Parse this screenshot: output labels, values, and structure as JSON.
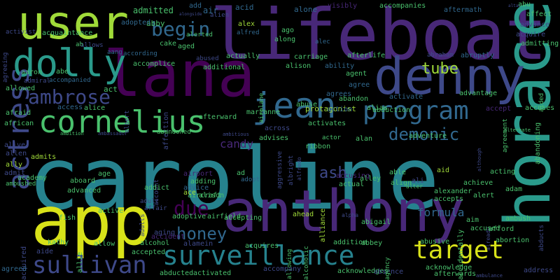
{
  "palette": {
    "yellow": "#d8e219",
    "lime": "#a0da39",
    "green": "#4ac16d",
    "teal": "#2a9a8b",
    "cyan": "#26828e",
    "blue": "#31688e",
    "indigo": "#3e4989",
    "purple": "#482878",
    "violet": "#440154"
  },
  "words": [
    {
      "text": "caroline",
      "color": "cyan"
    },
    {
      "text": "lifeboat",
      "color": "purple"
    },
    {
      "text": "lana",
      "color": "violet"
    },
    {
      "text": "anthony",
      "color": "purple"
    },
    {
      "text": "app",
      "color": "yellow"
    },
    {
      "text": "horace",
      "color": "teal"
    },
    {
      "text": "denny",
      "color": "indigo"
    },
    {
      "text": "user",
      "color": "lime"
    },
    {
      "text": "dolly",
      "color": "teal"
    },
    {
      "text": "jean",
      "color": "blue"
    },
    {
      "text": "cornelius",
      "color": "green"
    },
    {
      "text": "program",
      "color": "blue"
    },
    {
      "text": "surveillance",
      "color": "cyan"
    },
    {
      "text": "actress",
      "color": "indigo"
    },
    {
      "text": "sullivan",
      "color": "indigo"
    },
    {
      "text": "ambrose",
      "color": "indigo"
    },
    {
      "text": "target",
      "color": "yellow"
    },
    {
      "text": "begin",
      "color": "blue"
    },
    {
      "text": "due",
      "color": "violet"
    },
    {
      "text": "demonic",
      "color": "blue"
    },
    {
      "text": "honey",
      "color": "blue"
    },
    {
      "text": "tube",
      "color": "lime"
    },
    {
      "text": "formula",
      "color": "blue"
    },
    {
      "text": "candy",
      "color": "purple"
    },
    {
      "text": "ash",
      "color": "indigo"
    },
    {
      "text": "admitted",
      "color": "green"
    },
    {
      "text": "abby",
      "color": "green"
    },
    {
      "text": "add",
      "color": "blue"
    },
    {
      "text": "air",
      "color": "blue"
    },
    {
      "text": "acid",
      "color": "blue"
    },
    {
      "text": "alone",
      "color": "blue"
    },
    {
      "text": "visibly",
      "color": "purple"
    },
    {
      "text": "accompanies",
      "color": "green"
    },
    {
      "text": "aftermath",
      "color": "blue"
    },
    {
      "text": "abu",
      "color": "green"
    },
    {
      "text": "affect",
      "color": "green"
    },
    {
      "text": "advance",
      "color": "indigo"
    },
    {
      "text": "acquire",
      "color": "indigo"
    },
    {
      "text": "admitting",
      "color": "green"
    },
    {
      "text": "alongside",
      "color": "indigo"
    },
    {
      "text": "alien",
      "color": "indigo"
    },
    {
      "text": "adopted",
      "color": "blue"
    },
    {
      "text": "activist",
      "color": "indigo"
    },
    {
      "text": "acquaintance",
      "color": "green"
    },
    {
      "text": "alerted",
      "color": "green"
    },
    {
      "text": "alex",
      "color": "lime"
    },
    {
      "text": "alfred",
      "color": "blue"
    },
    {
      "text": "ago",
      "color": "green"
    },
    {
      "text": "along",
      "color": "green"
    },
    {
      "text": "alec",
      "color": "blue"
    },
    {
      "text": "allows",
      "color": "indigo"
    },
    {
      "text": "aang",
      "color": "blue"
    },
    {
      "text": "according",
      "color": "blue"
    },
    {
      "text": "cake",
      "color": "green"
    },
    {
      "text": "aged",
      "color": "green"
    },
    {
      "text": "ah",
      "color": "green"
    },
    {
      "text": "abraham",
      "color": "indigo"
    },
    {
      "text": "abruptly",
      "color": "blue"
    },
    {
      "text": "afterlife",
      "color": "green"
    },
    {
      "text": "actually",
      "color": "green"
    },
    {
      "text": "carriage",
      "color": "green"
    },
    {
      "text": "accomplice",
      "color": "green"
    },
    {
      "text": "abused",
      "color": "indigo"
    },
    {
      "text": "additional",
      "color": "green"
    },
    {
      "text": "alison",
      "color": "green"
    },
    {
      "text": "ability",
      "color": "blue"
    },
    {
      "text": "aaron",
      "color": "green"
    },
    {
      "text": "abe",
      "color": "green"
    },
    {
      "text": "admiral",
      "color": "indigo"
    },
    {
      "text": "accompanied",
      "color": "blue"
    },
    {
      "text": "agent",
      "color": "green"
    },
    {
      "text": "agree",
      "color": "blue"
    },
    {
      "text": "allowed",
      "color": "green"
    },
    {
      "text": "act",
      "color": "green"
    },
    {
      "text": "albert",
      "color": "indigo"
    },
    {
      "text": "airplane",
      "color": "green"
    },
    {
      "text": "agrees",
      "color": "blue"
    },
    {
      "text": "abandon",
      "color": "green"
    },
    {
      "text": "alias",
      "color": "green"
    },
    {
      "text": "activate",
      "color": "blue"
    },
    {
      "text": "advantage",
      "color": "green"
    },
    {
      "text": "accept",
      "color": "purple"
    },
    {
      "text": "accuses",
      "color": "green"
    },
    {
      "text": "aided",
      "color": "green"
    },
    {
      "text": "afraid",
      "color": "green"
    },
    {
      "text": "access",
      "color": "blue"
    },
    {
      "text": "alice",
      "color": "green"
    },
    {
      "text": "abuse",
      "color": "green"
    },
    {
      "text": "affection",
      "color": "indigo"
    },
    {
      "text": "afterward",
      "color": "green"
    },
    {
      "text": "abandoned",
      "color": "green"
    },
    {
      "text": "marianne",
      "color": "green"
    },
    {
      "text": "protagonist",
      "color": "lime"
    },
    {
      "text": "action",
      "color": "blue"
    },
    {
      "text": "abduction",
      "color": "green"
    },
    {
      "text": "african",
      "color": "green"
    },
    {
      "text": "activates",
      "color": "green"
    },
    {
      "text": "across",
      "color": "indigo"
    },
    {
      "text": "advises",
      "color": "green"
    },
    {
      "text": "actor",
      "color": "green"
    },
    {
      "text": "ribbon",
      "color": "green"
    },
    {
      "text": "alan",
      "color": "green"
    },
    {
      "text": "adventure",
      "color": "green"
    },
    {
      "text": "ambition",
      "color": "green"
    },
    {
      "text": "ambassador",
      "color": "indigo"
    },
    {
      "text": "ambitious",
      "color": "indigo"
    },
    {
      "text": "alternate",
      "color": "green"
    },
    {
      "text": "although",
      "color": "indigo"
    },
    {
      "text": "agreement",
      "color": "green"
    },
    {
      "text": "abandoning",
      "color": "green"
    },
    {
      "text": "alive",
      "color": "indigo"
    },
    {
      "text": "allen",
      "color": "indigo"
    },
    {
      "text": "admits",
      "color": "lime"
    },
    {
      "text": "ally",
      "color": "lime"
    },
    {
      "text": "admit",
      "color": "indigo"
    },
    {
      "text": "academy",
      "color": "green"
    },
    {
      "text": "ambushed",
      "color": "green"
    },
    {
      "text": "age",
      "color": "green"
    },
    {
      "text": "aboard",
      "color": "green"
    },
    {
      "text": "advanced",
      "color": "green"
    },
    {
      "text": "account",
      "color": "indigo"
    },
    {
      "text": "airport",
      "color": "purple"
    },
    {
      "text": "adding",
      "color": "green"
    },
    {
      "text": "ad",
      "color": "green"
    },
    {
      "text": "adopt",
      "color": "blue"
    },
    {
      "text": "advice",
      "color": "blue"
    },
    {
      "text": "aircraft",
      "color": "green"
    },
    {
      "text": "aggressive",
      "color": "indigo"
    },
    {
      "text": "albright",
      "color": "indigo"
    },
    {
      "text": "alfredo",
      "color": "indigo"
    },
    {
      "text": "accusing",
      "color": "purple"
    },
    {
      "text": "actual",
      "color": "green"
    },
    {
      "text": "able",
      "color": "green"
    },
    {
      "text": "alley",
      "color": "green"
    },
    {
      "text": "aid",
      "color": "lime"
    },
    {
      "text": "align",
      "color": "green"
    },
    {
      "text": "ali",
      "color": "indigo"
    },
    {
      "text": "alter",
      "color": "green"
    },
    {
      "text": "alexander",
      "color": "green"
    },
    {
      "text": "acting",
      "color": "green"
    },
    {
      "text": "achieve",
      "color": "green"
    },
    {
      "text": "adam",
      "color": "green"
    },
    {
      "text": "adults",
      "color": "indigo"
    },
    {
      "text": "ace",
      "color": "lime"
    },
    {
      "text": "addict",
      "color": "green"
    },
    {
      "text": "alison",
      "color": "green"
    },
    {
      "text": "active",
      "color": "green"
    },
    {
      "text": "adult",
      "color": "indigo"
    },
    {
      "text": "affair",
      "color": "indigo"
    },
    {
      "text": "accepting",
      "color": "green"
    },
    {
      "text": "ahead",
      "color": "lime"
    },
    {
      "text": "abigail",
      "color": "green"
    },
    {
      "text": "accepts",
      "color": "green"
    },
    {
      "text": "alert",
      "color": "green"
    },
    {
      "text": "alpha",
      "color": "indigo"
    },
    {
      "text": "already",
      "color": "indigo"
    },
    {
      "text": "aim",
      "color": "green"
    },
    {
      "text": "ambush",
      "color": "green"
    },
    {
      "text": "abducts",
      "color": "indigo"
    },
    {
      "text": "fish",
      "color": "green"
    },
    {
      "text": "allie",
      "color": "green"
    },
    {
      "text": "adoptive",
      "color": "green"
    },
    {
      "text": "airfield",
      "color": "green"
    },
    {
      "text": "accident",
      "color": "purple"
    },
    {
      "text": "alliance",
      "color": "lime"
    },
    {
      "text": "accused",
      "color": "green"
    },
    {
      "text": "afford",
      "color": "green"
    },
    {
      "text": "abortion",
      "color": "green"
    },
    {
      "text": "acquired",
      "color": "indigo"
    },
    {
      "text": "aide",
      "color": "indigo"
    },
    {
      "text": "kathy",
      "color": "green"
    },
    {
      "text": "allow",
      "color": "green"
    },
    {
      "text": "aging",
      "color": "indigo"
    },
    {
      "text": "alcohol",
      "color": "green"
    },
    {
      "text": "alamein",
      "color": "indigo"
    },
    {
      "text": "accepted",
      "color": "green"
    },
    {
      "text": "acquires",
      "color": "green"
    },
    {
      "text": "allowing",
      "color": "green"
    },
    {
      "text": "alcoholic",
      "color": "green"
    },
    {
      "text": "addition",
      "color": "green"
    },
    {
      "text": "abbey",
      "color": "green"
    },
    {
      "text": "abusive",
      "color": "green"
    },
    {
      "text": "accidentally",
      "color": "green"
    },
    {
      "text": "acknowledge",
      "color": "green"
    },
    {
      "text": "agreed",
      "color": "blue"
    },
    {
      "text": "abducted",
      "color": "green"
    },
    {
      "text": "activated",
      "color": "green"
    },
    {
      "text": "accompany",
      "color": "indigo"
    },
    {
      "text": "acknowledges",
      "color": "green"
    },
    {
      "text": "absence",
      "color": "indigo"
    },
    {
      "text": "agency",
      "color": "green"
    },
    {
      "text": "afterwards",
      "color": "green"
    },
    {
      "text": "ambulance",
      "color": "indigo"
    },
    {
      "text": "address",
      "color": "indigo"
    },
    {
      "text": "agreeing",
      "color": "indigo"
    },
    {
      "text": "altar",
      "color": "indigo"
    }
  ]
}
